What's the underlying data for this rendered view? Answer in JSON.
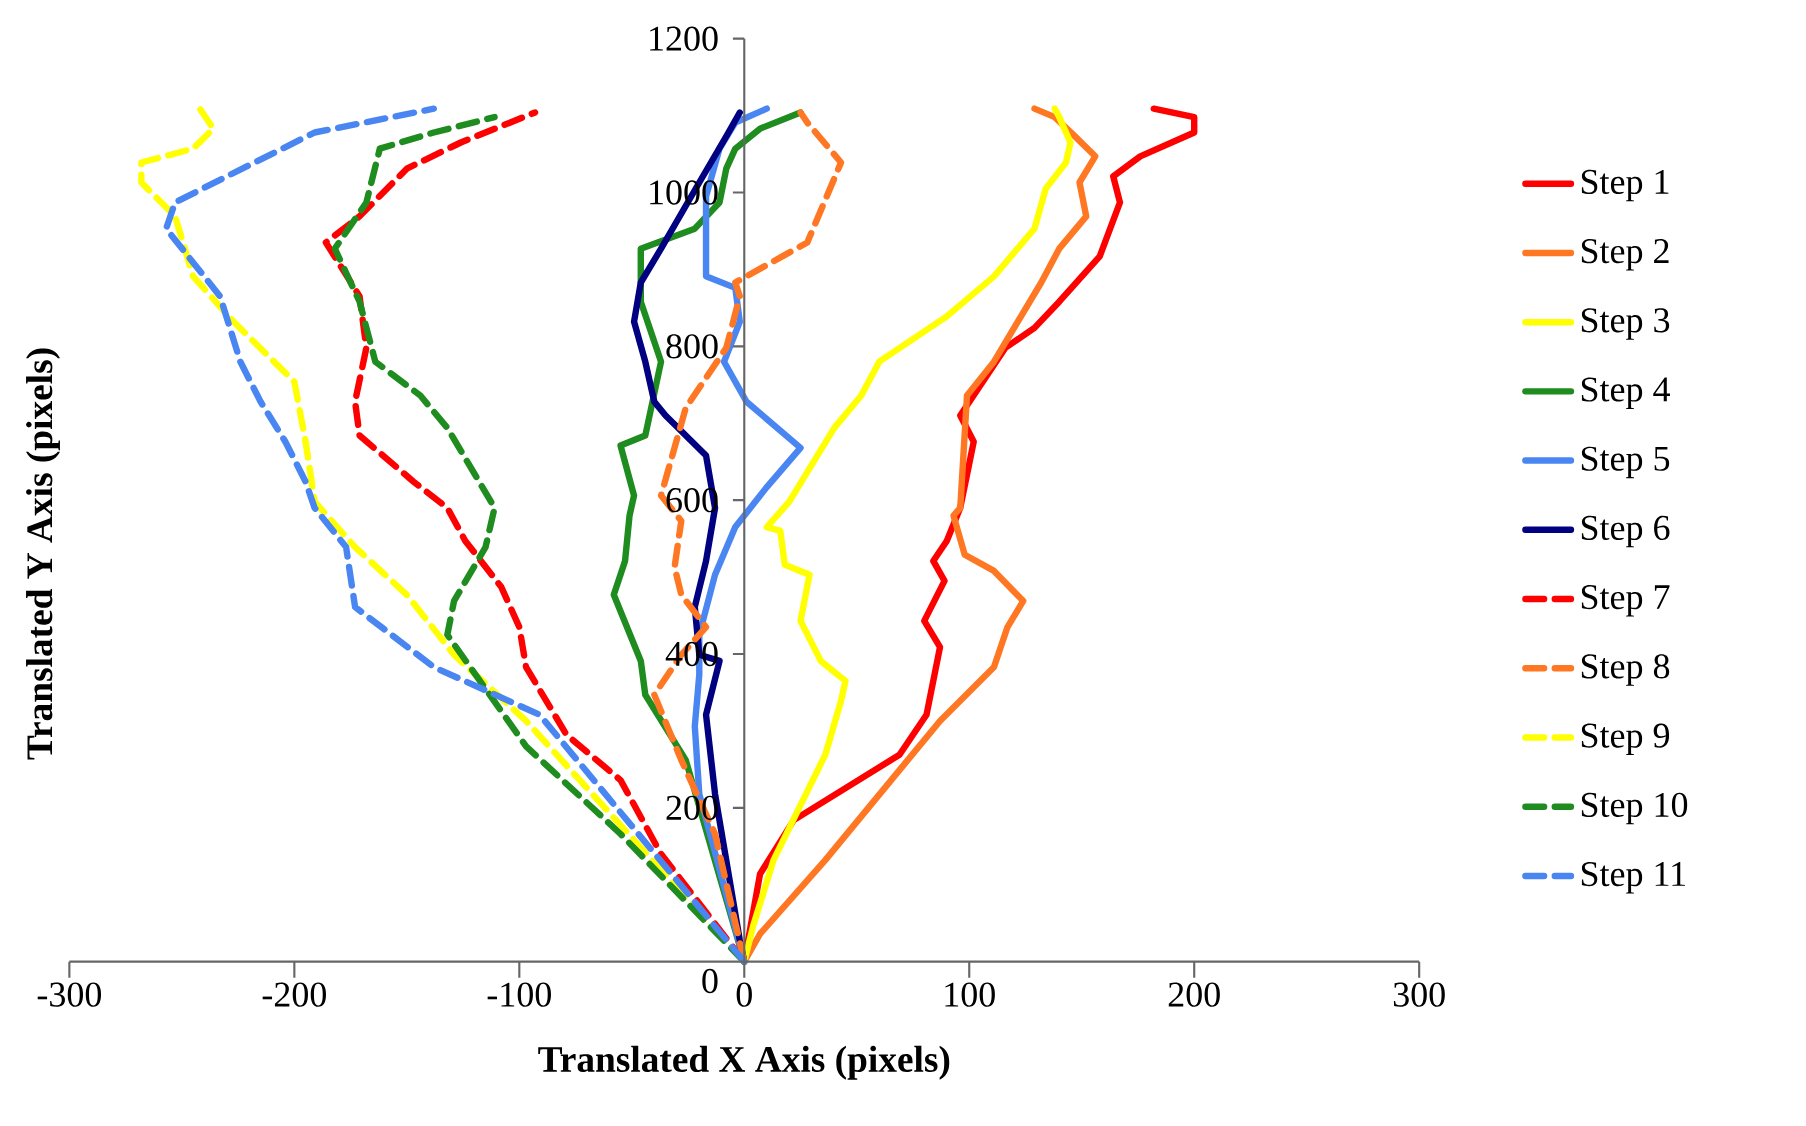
{
  "chart_data": {
    "type": "line",
    "xlabel": "Translated X Axis (pixels)",
    "ylabel": "Translated Y Axis (pixels)",
    "xlim": [
      -300,
      300
    ],
    "ylim": [
      0,
      1200
    ],
    "xticks": [
      -300,
      -200,
      -100,
      0,
      100,
      200,
      300
    ],
    "yticks": [
      0,
      200,
      400,
      600,
      800,
      1000,
      1200
    ],
    "grid": false,
    "legend": "right",
    "marker": "none",
    "series": [
      {
        "name": "Step 1",
        "color": "#ff0000",
        "line_style": "solid",
        "x": [
          0,
          7,
          22,
          69,
          81,
          87,
          80,
          89,
          84,
          90,
          96,
          102,
          96,
          116,
          129,
          140,
          158,
          167,
          164,
          176,
          200,
          200,
          182
        ],
        "values": [
          0,
          114,
          184,
          269,
          321,
          409,
          443,
          495,
          521,
          547,
          590,
          676,
          710,
          798,
          824,
          858,
          917,
          987,
          1021,
          1047,
          1078,
          1098,
          1109
        ]
      },
      {
        "name": "Step 2",
        "color": "#ff7722",
        "line_style": "solid",
        "x": [
          0,
          7,
          36,
          87,
          111,
          117,
          124,
          111,
          98,
          93,
          96,
          99,
          111,
          123,
          132,
          140,
          152,
          149,
          156,
          147,
          138,
          129
        ],
        "values": [
          0,
          36,
          132,
          313,
          383,
          435,
          469,
          508,
          529,
          580,
          590,
          736,
          780,
          839,
          883,
          927,
          969,
          1013,
          1047,
          1073,
          1098,
          1109
        ]
      },
      {
        "name": "Step 3",
        "color": "#ffff00",
        "line_style": "solid",
        "x": [
          0,
          4,
          13,
          36,
          43,
          45,
          34,
          25,
          29,
          18,
          16,
          10,
          20,
          40,
          52,
          60,
          90,
          111,
          129,
          134,
          143,
          145,
          140,
          138
        ],
        "values": [
          0,
          47,
          132,
          269,
          339,
          365,
          391,
          443,
          503,
          516,
          560,
          565,
          598,
          694,
          736,
          780,
          839,
          891,
          953,
          1005,
          1039,
          1065,
          1098,
          1109
        ]
      },
      {
        "name": "Step 4",
        "color": "#1f8c1f",
        "line_style": "solid",
        "x": [
          0,
          -26,
          -44,
          -46,
          -58,
          -53,
          -51,
          -49,
          -55,
          -44,
          -37,
          -46,
          -46,
          -22,
          -11,
          -8,
          -4,
          7,
          25
        ],
        "values": [
          0,
          262,
          347,
          391,
          477,
          521,
          580,
          606,
          671,
          684,
          780,
          858,
          927,
          953,
          987,
          1031,
          1057,
          1083,
          1104
        ]
      },
      {
        "name": "Step 5",
        "color": "#4a86f2",
        "line_style": "solid",
        "x": [
          0,
          -20,
          -22,
          -20,
          -20,
          -13,
          -4,
          10,
          25,
          1,
          -9,
          -2,
          -4,
          -17,
          -17,
          -11,
          -4,
          10
        ],
        "values": [
          0,
          218,
          306,
          373,
          425,
          503,
          565,
          617,
          668,
          728,
          780,
          832,
          876,
          891,
          995,
          1057,
          1091,
          1109
        ]
      },
      {
        "name": "Step 6",
        "color": "#000080",
        "line_style": "solid",
        "x": [
          0,
          -2,
          -13,
          -17,
          -11,
          -20,
          -22,
          -17,
          -13,
          -17,
          -35,
          -40,
          -44,
          -49,
          -46,
          -37,
          -20,
          -8,
          -2
        ],
        "values": [
          0,
          28,
          218,
          321,
          391,
          399,
          461,
          521,
          590,
          658,
          710,
          728,
          780,
          832,
          883,
          927,
          1013,
          1073,
          1104
        ]
      },
      {
        "name": "Step 7",
        "color": "#ff0000",
        "line_style": "dashed",
        "x": [
          0,
          -37,
          -55,
          -79,
          -97,
          -100,
          -108,
          -124,
          -132,
          -147,
          -171,
          -173,
          -168,
          -171,
          -186,
          -171,
          -150,
          -126,
          -93
        ],
        "values": [
          0,
          140,
          236,
          295,
          383,
          435,
          487,
          547,
          590,
          624,
          684,
          728,
          798,
          865,
          935,
          969,
          1031,
          1065,
          1104
        ]
      },
      {
        "name": "Step 8",
        "color": "#ff7722",
        "line_style": "dashed",
        "x": [
          0,
          -13,
          -28,
          -40,
          -28,
          -17,
          -28,
          -31,
          -28,
          -37,
          -26,
          -8,
          -2,
          -4,
          28,
          43,
          28,
          25
        ],
        "values": [
          0,
          166,
          262,
          347,
          399,
          435,
          477,
          513,
          573,
          606,
          720,
          798,
          865,
          883,
          935,
          1039,
          1091,
          1104
        ]
      },
      {
        "name": "Step 9",
        "color": "#ffff00",
        "line_style": "dashed",
        "x": [
          0,
          -97,
          -129,
          -150,
          -173,
          -191,
          -195,
          -200,
          -227,
          -245,
          -253,
          -268,
          -268,
          -245,
          -236,
          -242
        ],
        "values": [
          0,
          313,
          399,
          477,
          539,
          598,
          676,
          754,
          832,
          891,
          969,
          1013,
          1039,
          1057,
          1083,
          1109
        ]
      },
      {
        "name": "Step 10",
        "color": "#1f8c1f",
        "line_style": "dashed",
        "x": [
          0,
          -55,
          -97,
          -132,
          -129,
          -115,
          -111,
          -132,
          -144,
          -164,
          -171,
          -182,
          -168,
          -162,
          -138,
          -111
        ],
        "values": [
          0,
          166,
          280,
          425,
          469,
          539,
          590,
          694,
          736,
          780,
          858,
          927,
          987,
          1057,
          1078,
          1098
        ]
      },
      {
        "name": "Step 11",
        "color": "#4a86f2",
        "line_style": "dashed",
        "x": [
          0,
          -91,
          -138,
          -173,
          -177,
          -191,
          -195,
          -204,
          -215,
          -224,
          -233,
          -257,
          -253,
          -230,
          -191,
          -138
        ],
        "values": [
          0,
          321,
          383,
          461,
          539,
          590,
          624,
          676,
          728,
          780,
          865,
          953,
          987,
          1021,
          1078,
          1109
        ]
      }
    ]
  }
}
